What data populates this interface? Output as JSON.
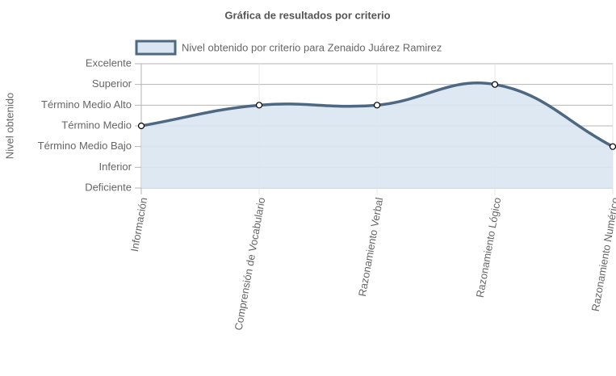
{
  "chart_data": {
    "type": "line",
    "title": "Gráfica de resultados por criterio",
    "y_label": "Nivel obtenido",
    "categories": [
      "Información",
      "Comprensión de Vocabulario",
      "Razonamiento Verbal",
      "Razonamiento Lógico",
      "Razonamiento Numérico"
    ],
    "series": [
      {
        "name": "Nivel obtenido por criterio para Zenaido Juárez Ramirez",
        "color": "#4f6882",
        "fill": "#d9e6f2",
        "values": [
          3,
          4,
          4,
          5,
          2
        ]
      }
    ],
    "ylim": [
      0,
      6
    ],
    "yticks": [
      {
        "value": 0,
        "label": "Deficiente"
      },
      {
        "value": 1,
        "label": "Inferior"
      },
      {
        "value": 2,
        "label": "Término Medio Bajo"
      },
      {
        "value": 3,
        "label": "Término Medio"
      },
      {
        "value": 4,
        "label": "Término Medio Alto"
      },
      {
        "value": 5,
        "label": "Superior"
      },
      {
        "value": 6,
        "label": "Excelente"
      }
    ],
    "grid": true,
    "legend": "top",
    "smooth": true
  }
}
